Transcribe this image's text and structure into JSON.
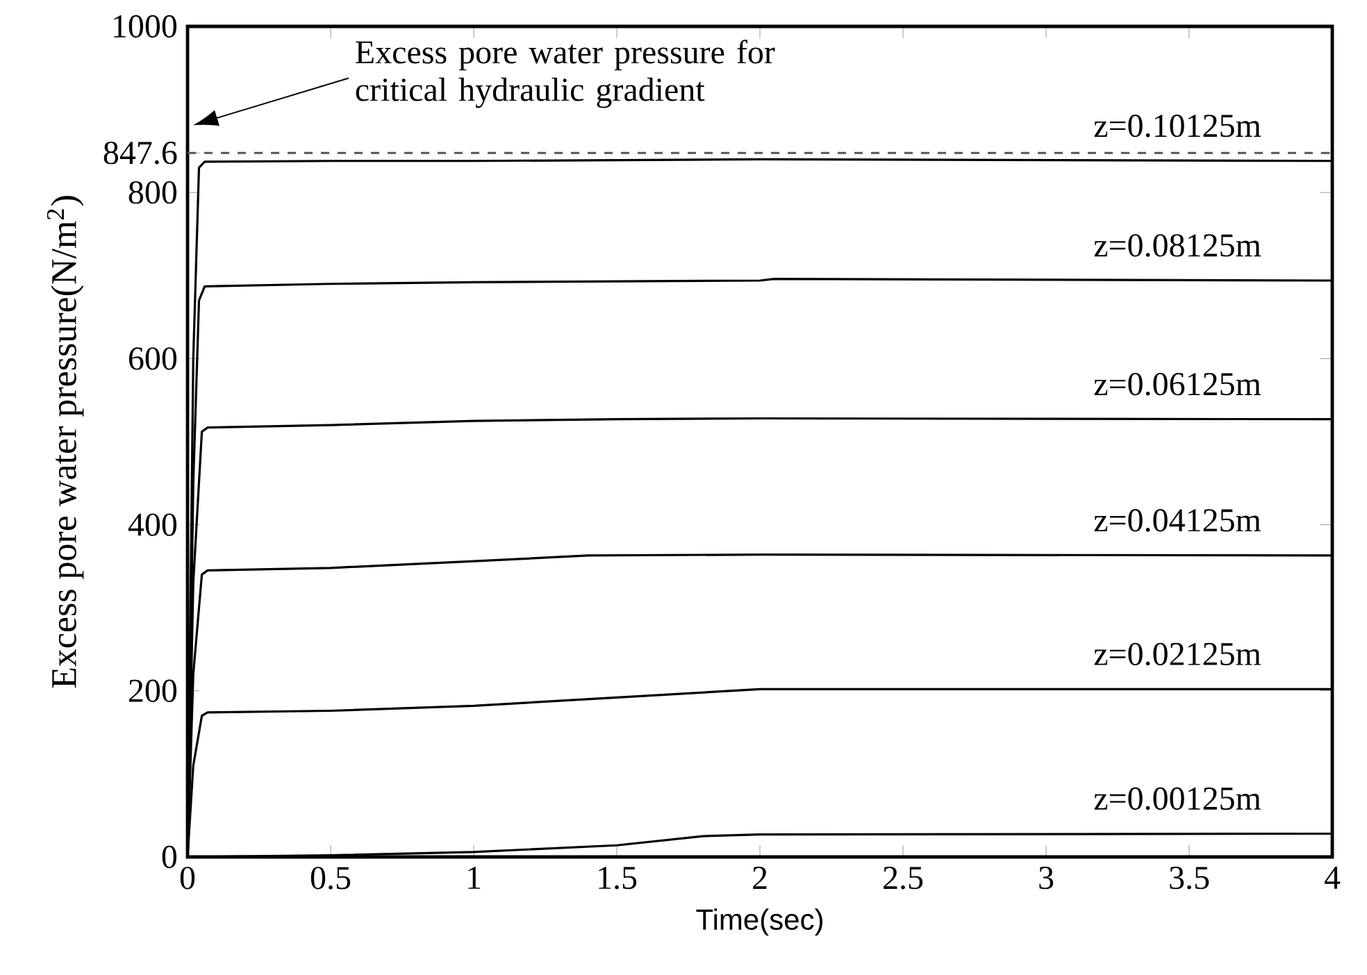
{
  "chart_data": {
    "type": "line",
    "xlabel": "Time(sec)",
    "ylabel": "Excess pore water pressure(N/m$^{2}$)",
    "xlim": [
      0,
      4
    ],
    "ylim": [
      0,
      1000
    ],
    "xticks": [
      0,
      0.5,
      1,
      1.5,
      2,
      2.5,
      3,
      3.5,
      4
    ],
    "yticks": [
      0,
      200,
      400,
      600,
      800,
      847.6,
      1000
    ],
    "series": [
      {
        "name": "z=0.10125m",
        "color": "#000000",
        "x": [
          0,
          0.02,
          0.04,
          0.06,
          0.5,
          1,
          2,
          4
        ],
        "values": [
          0,
          600,
          830,
          837,
          838,
          838,
          840,
          838
        ]
      },
      {
        "name": "z=0.08125m",
        "color": "#000000",
        "x": [
          0,
          0.02,
          0.04,
          0.06,
          0.5,
          1,
          2,
          2.05,
          4
        ],
        "values": [
          0,
          450,
          670,
          687,
          690,
          692,
          694,
          696,
          694
        ]
      },
      {
        "name": "z=0.06125m",
        "color": "#000000",
        "x": [
          0,
          0.02,
          0.05,
          0.07,
          0.5,
          1,
          1.5,
          2,
          4
        ],
        "values": [
          0,
          330,
          512,
          517,
          520,
          525,
          527,
          528,
          527
        ]
      },
      {
        "name": "z=0.04125m",
        "color": "#000000",
        "x": [
          0,
          0.02,
          0.05,
          0.07,
          0.5,
          1,
          1.4,
          2,
          4
        ],
        "values": [
          0,
          220,
          340,
          345,
          348,
          356,
          363,
          364,
          363
        ]
      },
      {
        "name": "z=0.02125m",
        "color": "#000000",
        "x": [
          0,
          0.02,
          0.05,
          0.07,
          0.5,
          1,
          1.5,
          2,
          4
        ],
        "values": [
          0,
          110,
          170,
          174,
          176,
          182,
          192,
          202,
          202
        ]
      },
      {
        "name": "z=0.00125m",
        "color": "#000000",
        "x": [
          0,
          0.5,
          1,
          1.5,
          1.8,
          2,
          4
        ],
        "values": [
          0,
          2,
          6,
          14,
          25,
          27,
          28
        ]
      }
    ],
    "ref_lines": [
      {
        "axis": "y",
        "value": 847.6,
        "label": "Excess pore water pressure for critical hydraulic gradient",
        "line_style": "dashed",
        "color": "#555555"
      }
    ]
  }
}
